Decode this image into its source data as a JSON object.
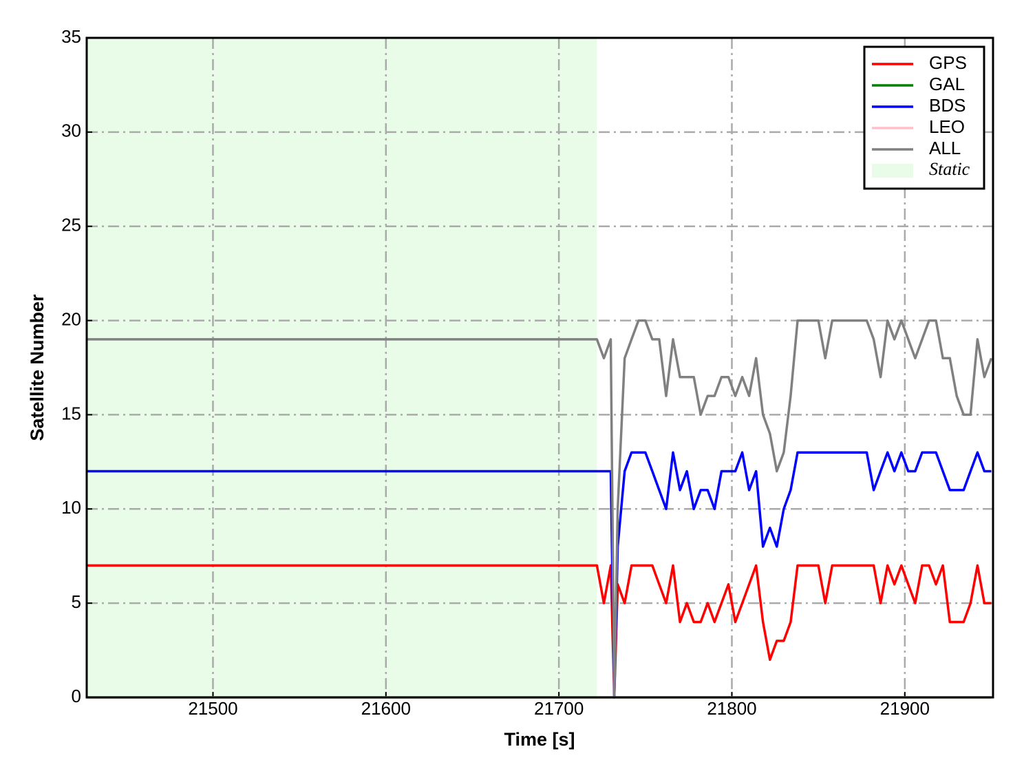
{
  "chart_data": {
    "type": "line",
    "xlabel": "Time [s]",
    "ylabel": "Satellite Number",
    "x": [
      21427,
      21722,
      21726,
      21730,
      21732,
      21734,
      21738,
      21742,
      21746,
      21750,
      21754,
      21758,
      21762,
      21766,
      21770,
      21774,
      21778,
      21782,
      21786,
      21790,
      21794,
      21798,
      21802,
      21806,
      21810,
      21814,
      21818,
      21822,
      21826,
      21830,
      21834,
      21838,
      21842,
      21846,
      21850,
      21854,
      21858,
      21862,
      21866,
      21870,
      21874,
      21878,
      21882,
      21886,
      21890,
      21894,
      21898,
      21902,
      21906,
      21910,
      21914,
      21918,
      21922,
      21926,
      21930,
      21934,
      21938,
      21942,
      21946,
      21950
    ],
    "series": [
      {
        "name": "GPS",
        "color": "#ff0000",
        "values": [
          7,
          7,
          5,
          7,
          0,
          6,
          5,
          7,
          7,
          7,
          7,
          6,
          5,
          7,
          4,
          5,
          4,
          4,
          5,
          4,
          5,
          6,
          4,
          5,
          6,
          7,
          4,
          2,
          3,
          3,
          4,
          7,
          7,
          7,
          7,
          5,
          7,
          7,
          7,
          7,
          7,
          7,
          7,
          5,
          7,
          6,
          7,
          6,
          5,
          7,
          7,
          6,
          7,
          4,
          4,
          4,
          5,
          7,
          5,
          5
        ]
      },
      {
        "name": "GAL",
        "color": "#008000",
        "values": [
          0,
          0,
          0,
          0,
          0,
          0,
          0,
          0,
          0,
          0,
          0,
          0,
          0,
          0,
          0,
          0,
          0,
          0,
          0,
          0,
          0,
          0,
          0,
          0,
          0,
          0,
          0,
          0,
          0,
          0,
          0,
          0,
          0,
          0,
          0,
          0,
          0,
          0,
          0,
          0,
          0,
          0,
          0,
          0,
          0,
          0,
          0,
          0,
          0,
          0,
          0,
          0,
          0,
          0,
          0,
          0,
          0,
          0,
          0,
          0
        ]
      },
      {
        "name": "BDS",
        "color": "#0000ff",
        "values": [
          12,
          12,
          12,
          12,
          0,
          8,
          12,
          13,
          13,
          13,
          12,
          11,
          10,
          13,
          11,
          12,
          10,
          11,
          11,
          10,
          12,
          12,
          12,
          13,
          11,
          12,
          8,
          9,
          8,
          10,
          11,
          13,
          13,
          13,
          13,
          13,
          13,
          13,
          13,
          13,
          13,
          13,
          11,
          12,
          13,
          12,
          13,
          12,
          12,
          13,
          13,
          13,
          12,
          11,
          11,
          11,
          12,
          13,
          12,
          12
        ]
      },
      {
        "name": "LEO",
        "color": "#ffc0cb",
        "values": [
          0,
          0,
          0,
          0,
          0,
          0,
          0,
          0,
          0,
          0,
          0,
          0,
          0,
          0,
          0,
          0,
          0,
          0,
          0,
          0,
          0,
          0,
          0,
          0,
          0,
          0,
          0,
          0,
          0,
          0,
          0,
          0,
          0,
          0,
          0,
          0,
          0,
          0,
          0,
          0,
          0,
          0,
          0,
          0,
          0,
          0,
          0,
          0,
          0,
          0,
          0,
          0,
          0,
          0,
          0,
          0,
          0,
          0,
          0,
          0
        ]
      },
      {
        "name": "ALL",
        "color": "#808080",
        "values": [
          19,
          19,
          18,
          19,
          0,
          10,
          18,
          19,
          20,
          20,
          19,
          19,
          16,
          19,
          17,
          17,
          17,
          15,
          16,
          16,
          17,
          17,
          16,
          17,
          16,
          18,
          15,
          14,
          12,
          13,
          16,
          20,
          20,
          20,
          20,
          18,
          20,
          20,
          20,
          20,
          20,
          20,
          19,
          17,
          20,
          19,
          20,
          19,
          18,
          19,
          20,
          20,
          18,
          18,
          16,
          15,
          15,
          19,
          17,
          18
        ]
      }
    ],
    "shade": {
      "label": "Static",
      "x": [
        21427,
        21722
      ],
      "color": "#e8fce8"
    },
    "xlim": [
      21427,
      21951
    ],
    "xticks": [
      21500,
      21600,
      21700,
      21800,
      21900
    ],
    "ylim": [
      0,
      35
    ],
    "yticks": [
      0,
      5,
      10,
      15,
      20,
      25,
      30,
      35
    ],
    "grid": true,
    "legend": "upper right"
  }
}
